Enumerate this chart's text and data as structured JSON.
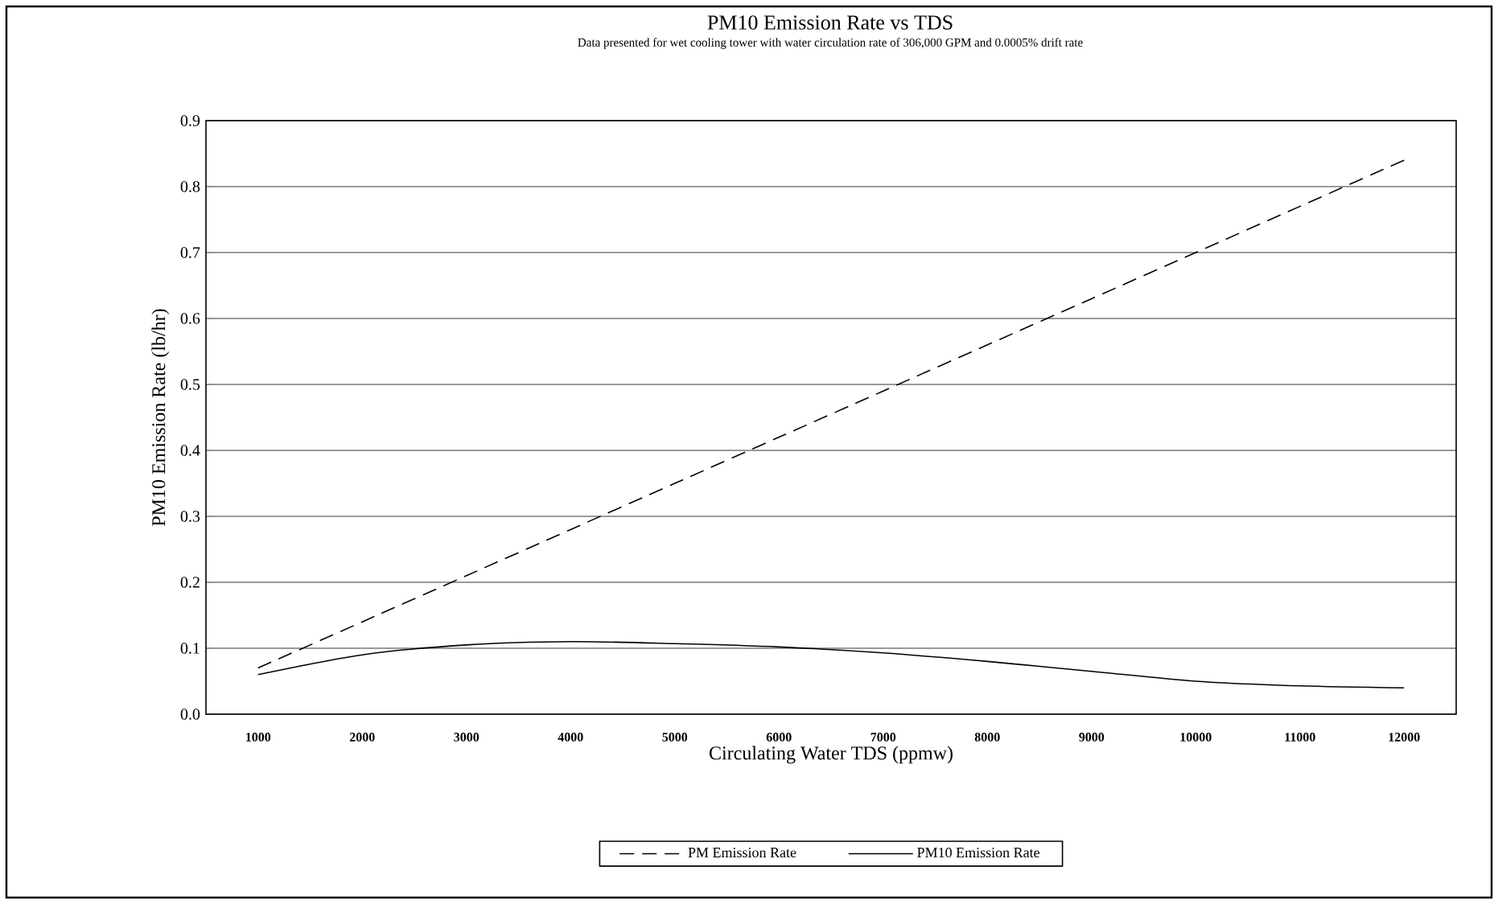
{
  "chart_data": {
    "type": "line",
    "title": "PM10 Emission Rate vs TDS",
    "subtitle": "Data presented for wet cooling tower with water circulation rate of 306,000 GPM and 0.0005% drift rate",
    "xlabel": "Circulating Water TDS (ppmw)",
    "ylabel": "PM10 Emission Rate (lb/hr)",
    "categories": [
      "1000",
      "2000",
      "3000",
      "4000",
      "5000",
      "6000",
      "7000",
      "8000",
      "9000",
      "10000",
      "11000",
      "12000"
    ],
    "series": [
      {
        "name": "PM Emission Rate",
        "color": "#000000",
        "line_style": "dashed",
        "values": [
          0.07,
          0.14,
          0.21,
          0.28,
          0.35,
          0.42,
          0.49,
          0.56,
          0.63,
          0.7,
          0.77,
          0.84
        ]
      },
      {
        "name": "PM10 Emission Rate",
        "color": "#000000",
        "line_style": "solid",
        "values": [
          0.06,
          0.09,
          0.105,
          0.11,
          0.107,
          0.102,
          0.093,
          0.08,
          0.065,
          0.05,
          0.043,
          0.04
        ]
      }
    ],
    "ylim": [
      0,
      0.9
    ],
    "yticks": [
      {
        "value": 0,
        "label": "0.0"
      },
      0.1,
      0.2,
      0.3,
      0.4,
      0.5,
      0.6,
      0.7,
      0.8,
      0.9
    ],
    "grid": "y",
    "legend": "bottom",
    "marker": "none"
  }
}
